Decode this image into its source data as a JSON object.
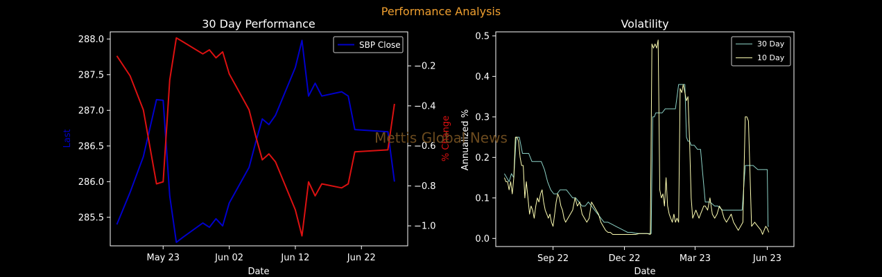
{
  "figure": {
    "suptitle": "Performance Analysis",
    "watermark": "Mettis Global News",
    "colors": {
      "background": "#000000",
      "suptitle": "#f0a030",
      "watermark": "#6b4a1e",
      "axis": "#ffffff"
    }
  },
  "chart_data": [
    {
      "type": "line",
      "title": "30 Day Performance",
      "xlabel": "Date",
      "ylabel": "Last",
      "y2label": "% Change",
      "ylim": [
        285.1,
        288.1
      ],
      "y2lim": [
        -1.1,
        -0.03
      ],
      "xlim": [
        "2023-05-15",
        "2023-06-29"
      ],
      "xticks": [
        "May 23",
        "Jun 02",
        "Jun 12",
        "Jun 22"
      ],
      "xtick_dates": [
        "2023-05-23",
        "2023-06-02",
        "2023-06-12",
        "2023-06-22"
      ],
      "yticks": [
        "285.5",
        "286.0",
        "286.5",
        "287.0",
        "287.5",
        "288.0"
      ],
      "ytick_values": [
        285.5,
        286.0,
        286.5,
        287.0,
        287.5,
        288.0
      ],
      "y2ticks": [
        "−1.0",
        "−0.8",
        "−0.6",
        "−0.4",
        "−0.2"
      ],
      "y2tick_values": [
        -1.0,
        -0.8,
        -0.6,
        -0.4,
        -0.2
      ],
      "legend": "top-right",
      "series": [
        {
          "name": "SBP Close",
          "axis": "left",
          "color": "#0000cc",
          "x": [
            "2023-05-16",
            "2023-05-18",
            "2023-05-20",
            "2023-05-22",
            "2023-05-23",
            "2023-05-24",
            "2023-05-25",
            "2023-05-26",
            "2023-05-29",
            "2023-05-30",
            "2023-05-31",
            "2023-06-01",
            "2023-06-02",
            "2023-06-05",
            "2023-06-06",
            "2023-06-07",
            "2023-06-08",
            "2023-06-09",
            "2023-06-12",
            "2023-06-13",
            "2023-06-14",
            "2023-06-15",
            "2023-06-16",
            "2023-06-19",
            "2023-06-20",
            "2023-06-21",
            "2023-06-26",
            "2023-06-27"
          ],
          "values": [
            285.4,
            285.85,
            286.35,
            287.15,
            287.14,
            285.8,
            285.15,
            285.22,
            285.42,
            285.36,
            285.48,
            285.38,
            285.7,
            286.2,
            286.55,
            286.88,
            286.8,
            286.93,
            287.6,
            287.98,
            287.2,
            287.38,
            287.2,
            287.26,
            287.2,
            286.73,
            286.7,
            286.0
          ]
        },
        {
          "name": "% Change",
          "axis": "right",
          "color": "#dd1111",
          "x": [
            "2023-05-16",
            "2023-05-18",
            "2023-05-20",
            "2023-05-22",
            "2023-05-23",
            "2023-05-24",
            "2023-05-25",
            "2023-05-26",
            "2023-05-29",
            "2023-05-30",
            "2023-05-31",
            "2023-06-01",
            "2023-06-02",
            "2023-06-05",
            "2023-06-06",
            "2023-06-07",
            "2023-06-08",
            "2023-06-09",
            "2023-06-12",
            "2023-06-13",
            "2023-06-14",
            "2023-06-15",
            "2023-06-16",
            "2023-06-19",
            "2023-06-20",
            "2023-06-21",
            "2023-06-26",
            "2023-06-27"
          ],
          "values": [
            -0.15,
            -0.25,
            -0.42,
            -0.79,
            -0.78,
            -0.27,
            -0.06,
            -0.08,
            -0.14,
            -0.12,
            -0.16,
            -0.13,
            -0.24,
            -0.42,
            -0.55,
            -0.67,
            -0.64,
            -0.68,
            -0.92,
            -1.05,
            -0.78,
            -0.85,
            -0.79,
            -0.81,
            -0.79,
            -0.63,
            -0.62,
            -0.39
          ]
        }
      ]
    },
    {
      "type": "line",
      "title": "Volatility",
      "xlabel": "Date",
      "ylabel": "Annualized %",
      "ylim": [
        -0.02,
        0.51
      ],
      "xlim": [
        "2022-06-20",
        "2023-07-05"
      ],
      "xticks": [
        "Sep 22",
        "Dec 22",
        "Mar 23",
        "Jun 23"
      ],
      "xtick_dates": [
        "2022-09-01",
        "2022-12-01",
        "2023-03-01",
        "2023-06-01"
      ],
      "yticks": [
        "0.0",
        "0.1",
        "0.2",
        "0.3",
        "0.4",
        "0.5"
      ],
      "ytick_values": [
        0.0,
        0.1,
        0.2,
        0.3,
        0.4,
        0.5
      ],
      "legend": "top-right",
      "series": [
        {
          "name": "30 Day",
          "color": "#8dd3c7",
          "x": [
            "2022-07-01",
            "2022-07-04",
            "2022-07-07",
            "2022-07-10",
            "2022-07-13",
            "2022-07-16",
            "2022-07-20",
            "2022-07-24",
            "2022-07-28",
            "2022-08-01",
            "2022-08-05",
            "2022-08-09",
            "2022-08-13",
            "2022-08-17",
            "2022-08-21",
            "2022-08-25",
            "2022-08-29",
            "2022-09-02",
            "2022-09-06",
            "2022-09-10",
            "2022-09-14",
            "2022-09-18",
            "2022-09-22",
            "2022-09-26",
            "2022-09-30",
            "2022-10-04",
            "2022-10-08",
            "2022-10-12",
            "2022-10-16",
            "2022-10-20",
            "2022-10-24",
            "2022-10-28",
            "2022-11-01",
            "2022-11-05",
            "2022-11-10",
            "2022-11-15",
            "2022-11-20",
            "2022-11-25",
            "2022-11-30",
            "2022-12-05",
            "2022-12-10",
            "2022-12-15",
            "2022-12-20",
            "2022-12-25",
            "2022-12-30",
            "2023-01-04",
            "2023-01-06",
            "2023-01-08",
            "2023-01-10",
            "2023-01-14",
            "2023-01-18",
            "2023-01-22",
            "2023-01-26",
            "2023-01-28",
            "2023-01-31",
            "2023-02-04",
            "2023-02-08",
            "2023-02-12",
            "2023-02-16",
            "2023-02-18",
            "2023-02-20",
            "2023-02-22",
            "2023-02-24",
            "2023-02-28",
            "2023-03-04",
            "2023-03-08",
            "2023-03-14",
            "2023-03-20",
            "2023-03-26",
            "2023-03-30",
            "2023-04-05",
            "2023-04-10",
            "2023-04-15",
            "2023-04-20",
            "2023-04-25",
            "2023-04-30",
            "2023-05-04",
            "2023-05-08",
            "2023-05-14",
            "2023-05-20",
            "2023-05-26",
            "2023-06-01",
            "2023-06-02",
            "2023-06-03"
          ],
          "values": [
            0.16,
            0.15,
            0.14,
            0.16,
            0.15,
            0.25,
            0.25,
            0.21,
            0.21,
            0.21,
            0.19,
            0.19,
            0.19,
            0.19,
            0.17,
            0.14,
            0.12,
            0.11,
            0.11,
            0.12,
            0.12,
            0.12,
            0.11,
            0.1,
            0.1,
            0.09,
            0.08,
            0.08,
            0.09,
            0.08,
            0.07,
            0.06,
            0.05,
            0.04,
            0.04,
            0.035,
            0.03,
            0.025,
            0.02,
            0.015,
            0.015,
            0.013,
            0.012,
            0.012,
            0.012,
            0.012,
            0.3,
            0.3,
            0.31,
            0.31,
            0.31,
            0.32,
            0.32,
            0.32,
            0.32,
            0.32,
            0.38,
            0.38,
            0.38,
            0.25,
            0.24,
            0.24,
            0.23,
            0.23,
            0.22,
            0.22,
            0.09,
            0.09,
            0.08,
            0.08,
            0.07,
            0.07,
            0.07,
            0.07,
            0.07,
            0.07,
            0.18,
            0.18,
            0.18,
            0.17,
            0.17,
            0.17,
            0.03,
            0.03
          ]
        },
        {
          "name": "10 Day",
          "color": "#ffffb3",
          "x": [
            "2022-07-01",
            "2022-07-03",
            "2022-07-05",
            "2022-07-07",
            "2022-07-09",
            "2022-07-11",
            "2022-07-13",
            "2022-07-15",
            "2022-07-17",
            "2022-07-19",
            "2022-07-21",
            "2022-07-23",
            "2022-07-25",
            "2022-07-27",
            "2022-07-29",
            "2022-07-31",
            "2022-08-02",
            "2022-08-04",
            "2022-08-06",
            "2022-08-08",
            "2022-08-10",
            "2022-08-12",
            "2022-08-14",
            "2022-08-16",
            "2022-08-18",
            "2022-08-20",
            "2022-08-22",
            "2022-08-24",
            "2022-08-26",
            "2022-08-28",
            "2022-08-30",
            "2022-09-01",
            "2022-09-03",
            "2022-09-05",
            "2022-09-07",
            "2022-09-09",
            "2022-09-11",
            "2022-09-13",
            "2022-09-15",
            "2022-09-17",
            "2022-09-20",
            "2022-09-23",
            "2022-09-26",
            "2022-09-29",
            "2022-10-02",
            "2022-10-05",
            "2022-10-08",
            "2022-10-11",
            "2022-10-14",
            "2022-10-17",
            "2022-10-20",
            "2022-10-23",
            "2022-10-26",
            "2022-10-29",
            "2022-11-01",
            "2022-11-04",
            "2022-11-07",
            "2022-11-10",
            "2022-11-13",
            "2022-11-16",
            "2022-11-20",
            "2022-11-25",
            "2022-11-30",
            "2022-12-05",
            "2022-12-10",
            "2022-12-15",
            "2022-12-20",
            "2022-12-25",
            "2022-12-30",
            "2023-01-03",
            "2023-01-05",
            "2023-01-07",
            "2023-01-09",
            "2023-01-11",
            "2023-01-13",
            "2023-01-15",
            "2023-01-17",
            "2023-01-19",
            "2023-01-21",
            "2023-01-23",
            "2023-01-25",
            "2023-01-27",
            "2023-01-29",
            "2023-01-31",
            "2023-02-02",
            "2023-02-04",
            "2023-02-06",
            "2023-02-08",
            "2023-02-10",
            "2023-02-12",
            "2023-02-14",
            "2023-02-16",
            "2023-02-18",
            "2023-02-20",
            "2023-02-22",
            "2023-02-24",
            "2023-02-26",
            "2023-02-28",
            "2023-03-02",
            "2023-03-04",
            "2023-03-06",
            "2023-03-08",
            "2023-03-10",
            "2023-03-12",
            "2023-03-14",
            "2023-03-17",
            "2023-03-20",
            "2023-03-23",
            "2023-03-26",
            "2023-03-29",
            "2023-04-01",
            "2023-04-04",
            "2023-04-07",
            "2023-04-10",
            "2023-04-13",
            "2023-04-16",
            "2023-04-19",
            "2023-04-22",
            "2023-04-25",
            "2023-04-28",
            "2023-05-01",
            "2023-05-04",
            "2023-05-06",
            "2023-05-08",
            "2023-05-12",
            "2023-05-16",
            "2023-05-20",
            "2023-05-24",
            "2023-05-26",
            "2023-05-28",
            "2023-05-30",
            "2023-06-01",
            "2023-06-03"
          ],
          "values": [
            0.15,
            0.14,
            0.14,
            0.12,
            0.14,
            0.11,
            0.15,
            0.25,
            0.25,
            0.24,
            0.2,
            0.18,
            0.18,
            0.1,
            0.14,
            0.1,
            0.06,
            0.08,
            0.07,
            0.05,
            0.08,
            0.1,
            0.09,
            0.11,
            0.12,
            0.09,
            0.07,
            0.06,
            0.05,
            0.06,
            0.04,
            0.03,
            0.06,
            0.09,
            0.11,
            0.1,
            0.08,
            0.07,
            0.05,
            0.04,
            0.05,
            0.06,
            0.07,
            0.1,
            0.08,
            0.09,
            0.06,
            0.05,
            0.04,
            0.05,
            0.09,
            0.08,
            0.07,
            0.06,
            0.04,
            0.03,
            0.02,
            0.015,
            0.015,
            0.01,
            0.01,
            0.01,
            0.01,
            0.01,
            0.01,
            0.01,
            0.012,
            0.012,
            0.012,
            0.01,
            0.48,
            0.47,
            0.48,
            0.47,
            0.49,
            0.12,
            0.1,
            0.11,
            0.08,
            0.15,
            0.08,
            0.06,
            0.05,
            0.04,
            0.06,
            0.04,
            0.05,
            0.04,
            0.37,
            0.36,
            0.38,
            0.36,
            0.34,
            0.35,
            0.24,
            0.1,
            0.05,
            0.06,
            0.07,
            0.06,
            0.05,
            0.06,
            0.07,
            0.08,
            0.08,
            0.07,
            0.1,
            0.06,
            0.05,
            0.06,
            0.08,
            0.07,
            0.05,
            0.04,
            0.05,
            0.06,
            0.04,
            0.03,
            0.02,
            0.03,
            0.04,
            0.3,
            0.3,
            0.29,
            0.03,
            0.04,
            0.03,
            0.02,
            0.01,
            0.02,
            0.03,
            0.025,
            0.015
          ]
        }
      ]
    }
  ]
}
